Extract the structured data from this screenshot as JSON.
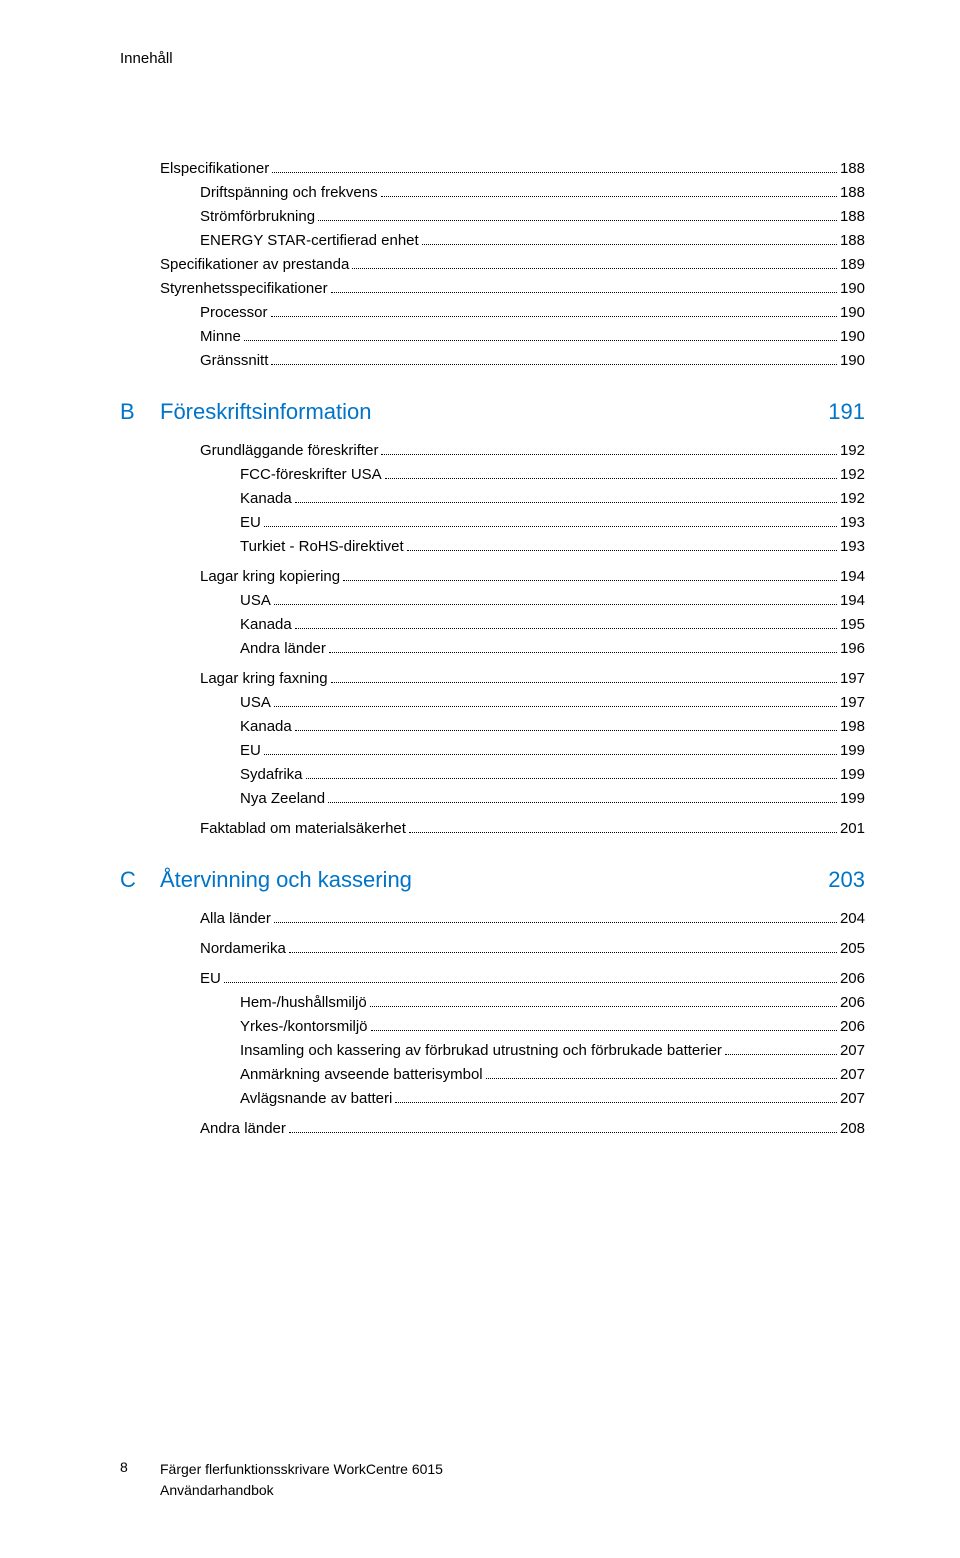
{
  "colors": {
    "accent": "#0074c8",
    "text": "#000000",
    "background": "#ffffff"
  },
  "typography": {
    "body_fontsize_pt": 11,
    "section_fontsize_pt": 16,
    "font_family": "Segoe UI, Arial, sans-serif"
  },
  "running_head": "Innehåll",
  "before_section": [
    {
      "label": "Elspecifikationer",
      "page": "188",
      "indent": 2
    },
    {
      "label": "Driftspänning och frekvens",
      "page": "188",
      "indent": 3
    },
    {
      "label": "Strömförbrukning",
      "page": "188",
      "indent": 3
    },
    {
      "label": "ENERGY STAR-certifierad enhet",
      "page": "188",
      "indent": 3
    },
    {
      "label": "Specifikationer av prestanda",
      "page": "189",
      "indent": 2
    },
    {
      "label": "Styrenhetsspecifikationer",
      "page": "190",
      "indent": 2
    },
    {
      "label": "Processor",
      "page": "190",
      "indent": 3
    },
    {
      "label": "Minne",
      "page": "190",
      "indent": 3
    },
    {
      "label": "Gränssnitt",
      "page": "190",
      "indent": 3
    }
  ],
  "sections": [
    {
      "letter": "B",
      "title": "Föreskriftsinformation",
      "page": "191",
      "items": [
        {
          "label": "Grundläggande föreskrifter",
          "page": "192",
          "indent": 2,
          "group_start": true
        },
        {
          "label": "FCC-föreskrifter USA",
          "page": "192",
          "indent": 3
        },
        {
          "label": "Kanada",
          "page": "192",
          "indent": 3
        },
        {
          "label": "EU",
          "page": "193",
          "indent": 3
        },
        {
          "label": "Turkiet - RoHS-direktivet",
          "page": "193",
          "indent": 3
        },
        {
          "label": "Lagar kring kopiering",
          "page": "194",
          "indent": 2,
          "group_start": true
        },
        {
          "label": "USA",
          "page": "194",
          "indent": 3
        },
        {
          "label": "Kanada",
          "page": "195",
          "indent": 3
        },
        {
          "label": "Andra länder",
          "page": "196",
          "indent": 3
        },
        {
          "label": "Lagar kring faxning",
          "page": "197",
          "indent": 2,
          "group_start": true
        },
        {
          "label": "USA",
          "page": "197",
          "indent": 3
        },
        {
          "label": "Kanada",
          "page": "198",
          "indent": 3
        },
        {
          "label": "EU",
          "page": "199",
          "indent": 3
        },
        {
          "label": "Sydafrika",
          "page": "199",
          "indent": 3
        },
        {
          "label": "Nya Zeeland",
          "page": "199",
          "indent": 3
        },
        {
          "label": "Faktablad om materialsäkerhet",
          "page": "201",
          "indent": 2,
          "group_start": true
        }
      ]
    },
    {
      "letter": "C",
      "title": "Återvinning och kassering",
      "page": "203",
      "items": [
        {
          "label": "Alla länder",
          "page": "204",
          "indent": 2,
          "group_start": true
        },
        {
          "label": "Nordamerika",
          "page": "205",
          "indent": 2,
          "group_start": true
        },
        {
          "label": "EU",
          "page": "206",
          "indent": 2,
          "group_start": true
        },
        {
          "label": "Hem-/hushållsmiljö",
          "page": "206",
          "indent": 3
        },
        {
          "label": "Yrkes-/kontorsmiljö",
          "page": "206",
          "indent": 3
        },
        {
          "label": "Insamling och kassering av förbrukad utrustning och förbrukade batterier",
          "page": "207",
          "indent": 3
        },
        {
          "label": "Anmärkning avseende batterisymbol",
          "page": "207",
          "indent": 3
        },
        {
          "label": "Avlägsnande av batteri",
          "page": "207",
          "indent": 3
        },
        {
          "label": "Andra länder",
          "page": "208",
          "indent": 2,
          "group_start": true
        }
      ]
    }
  ],
  "footer": {
    "page_number": "8",
    "line1": "Färger flerfunktionsskrivare WorkCentre 6015",
    "line2": "Användarhandbok"
  }
}
